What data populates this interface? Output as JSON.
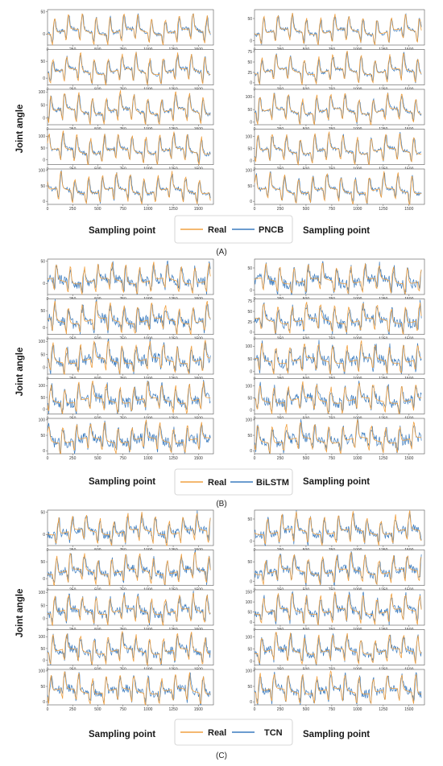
{
  "colors": {
    "real": "#F0A040",
    "pred": "#3A7BBF",
    "frame": "#555555"
  },
  "axis_text": {
    "ylabel": "Joint angle",
    "xlabel": "Sampling point"
  },
  "x_tick_labels": [
    "0",
    "250",
    "500",
    "750",
    "1000",
    "1250",
    "1500"
  ],
  "panels": [
    {
      "caption": "(A)",
      "legend": [
        "Real",
        "PNCB"
      ]
    },
    {
      "caption": "(B)",
      "legend": [
        "Real",
        "BiLSTM"
      ]
    },
    {
      "caption": "(C)",
      "legend": [
        "Real",
        "TCN"
      ]
    }
  ],
  "chart_data": {
    "type": "line",
    "layout": "3 panels x (2 columns x 5 subplots)",
    "xlabel": "Sampling point",
    "ylabel": "Joint angle",
    "xlim": [
      0,
      1650
    ],
    "series": [
      {
        "name": "Real"
      },
      {
        "name": "PNCB",
        "panel": "(A)"
      },
      {
        "name": "BiLSTM",
        "panel": "(B)"
      },
      {
        "name": "TCN",
        "panel": "(C)"
      }
    ],
    "subplot_yticks": {
      "left": [
        [
          "0",
          "50"
        ],
        [
          "0",
          "50"
        ],
        [
          "0",
          "50",
          "100"
        ],
        [
          "0",
          "50",
          "100"
        ],
        [
          "0",
          "50",
          "100"
        ]
      ],
      "right": [
        [
          "0",
          "50"
        ],
        [
          "0",
          "25",
          "50",
          "75"
        ],
        [
          "0",
          "50",
          "100"
        ],
        [
          "0",
          "50",
          "100"
        ],
        [
          "0",
          "50",
          "100"
        ]
      ],
      "panel_C_right": [
        [
          "0",
          "50"
        ],
        [
          "0",
          "50"
        ],
        [
          "0",
          "50",
          "100",
          "150"
        ],
        [
          "0",
          "50",
          "100"
        ],
        [
          "0",
          "50",
          "100"
        ]
      ]
    },
    "subplot_ylim": {
      "left": [
        [
          -25,
          55
        ],
        [
          -20,
          85
        ],
        [
          -25,
          110
        ],
        [
          -20,
          130
        ],
        [
          -10,
          105
        ]
      ],
      "right": [
        [
          -10,
          70
        ],
        [
          -5,
          80
        ],
        [
          -10,
          130
        ],
        [
          -15,
          130
        ],
        [
          -10,
          105
        ]
      ],
      "panel_C_right": [
        [
          -10,
          70
        ],
        [
          -10,
          80
        ],
        [
          -15,
          160
        ],
        [
          -15,
          130
        ],
        [
          -10,
          105
        ]
      ]
    }
  }
}
